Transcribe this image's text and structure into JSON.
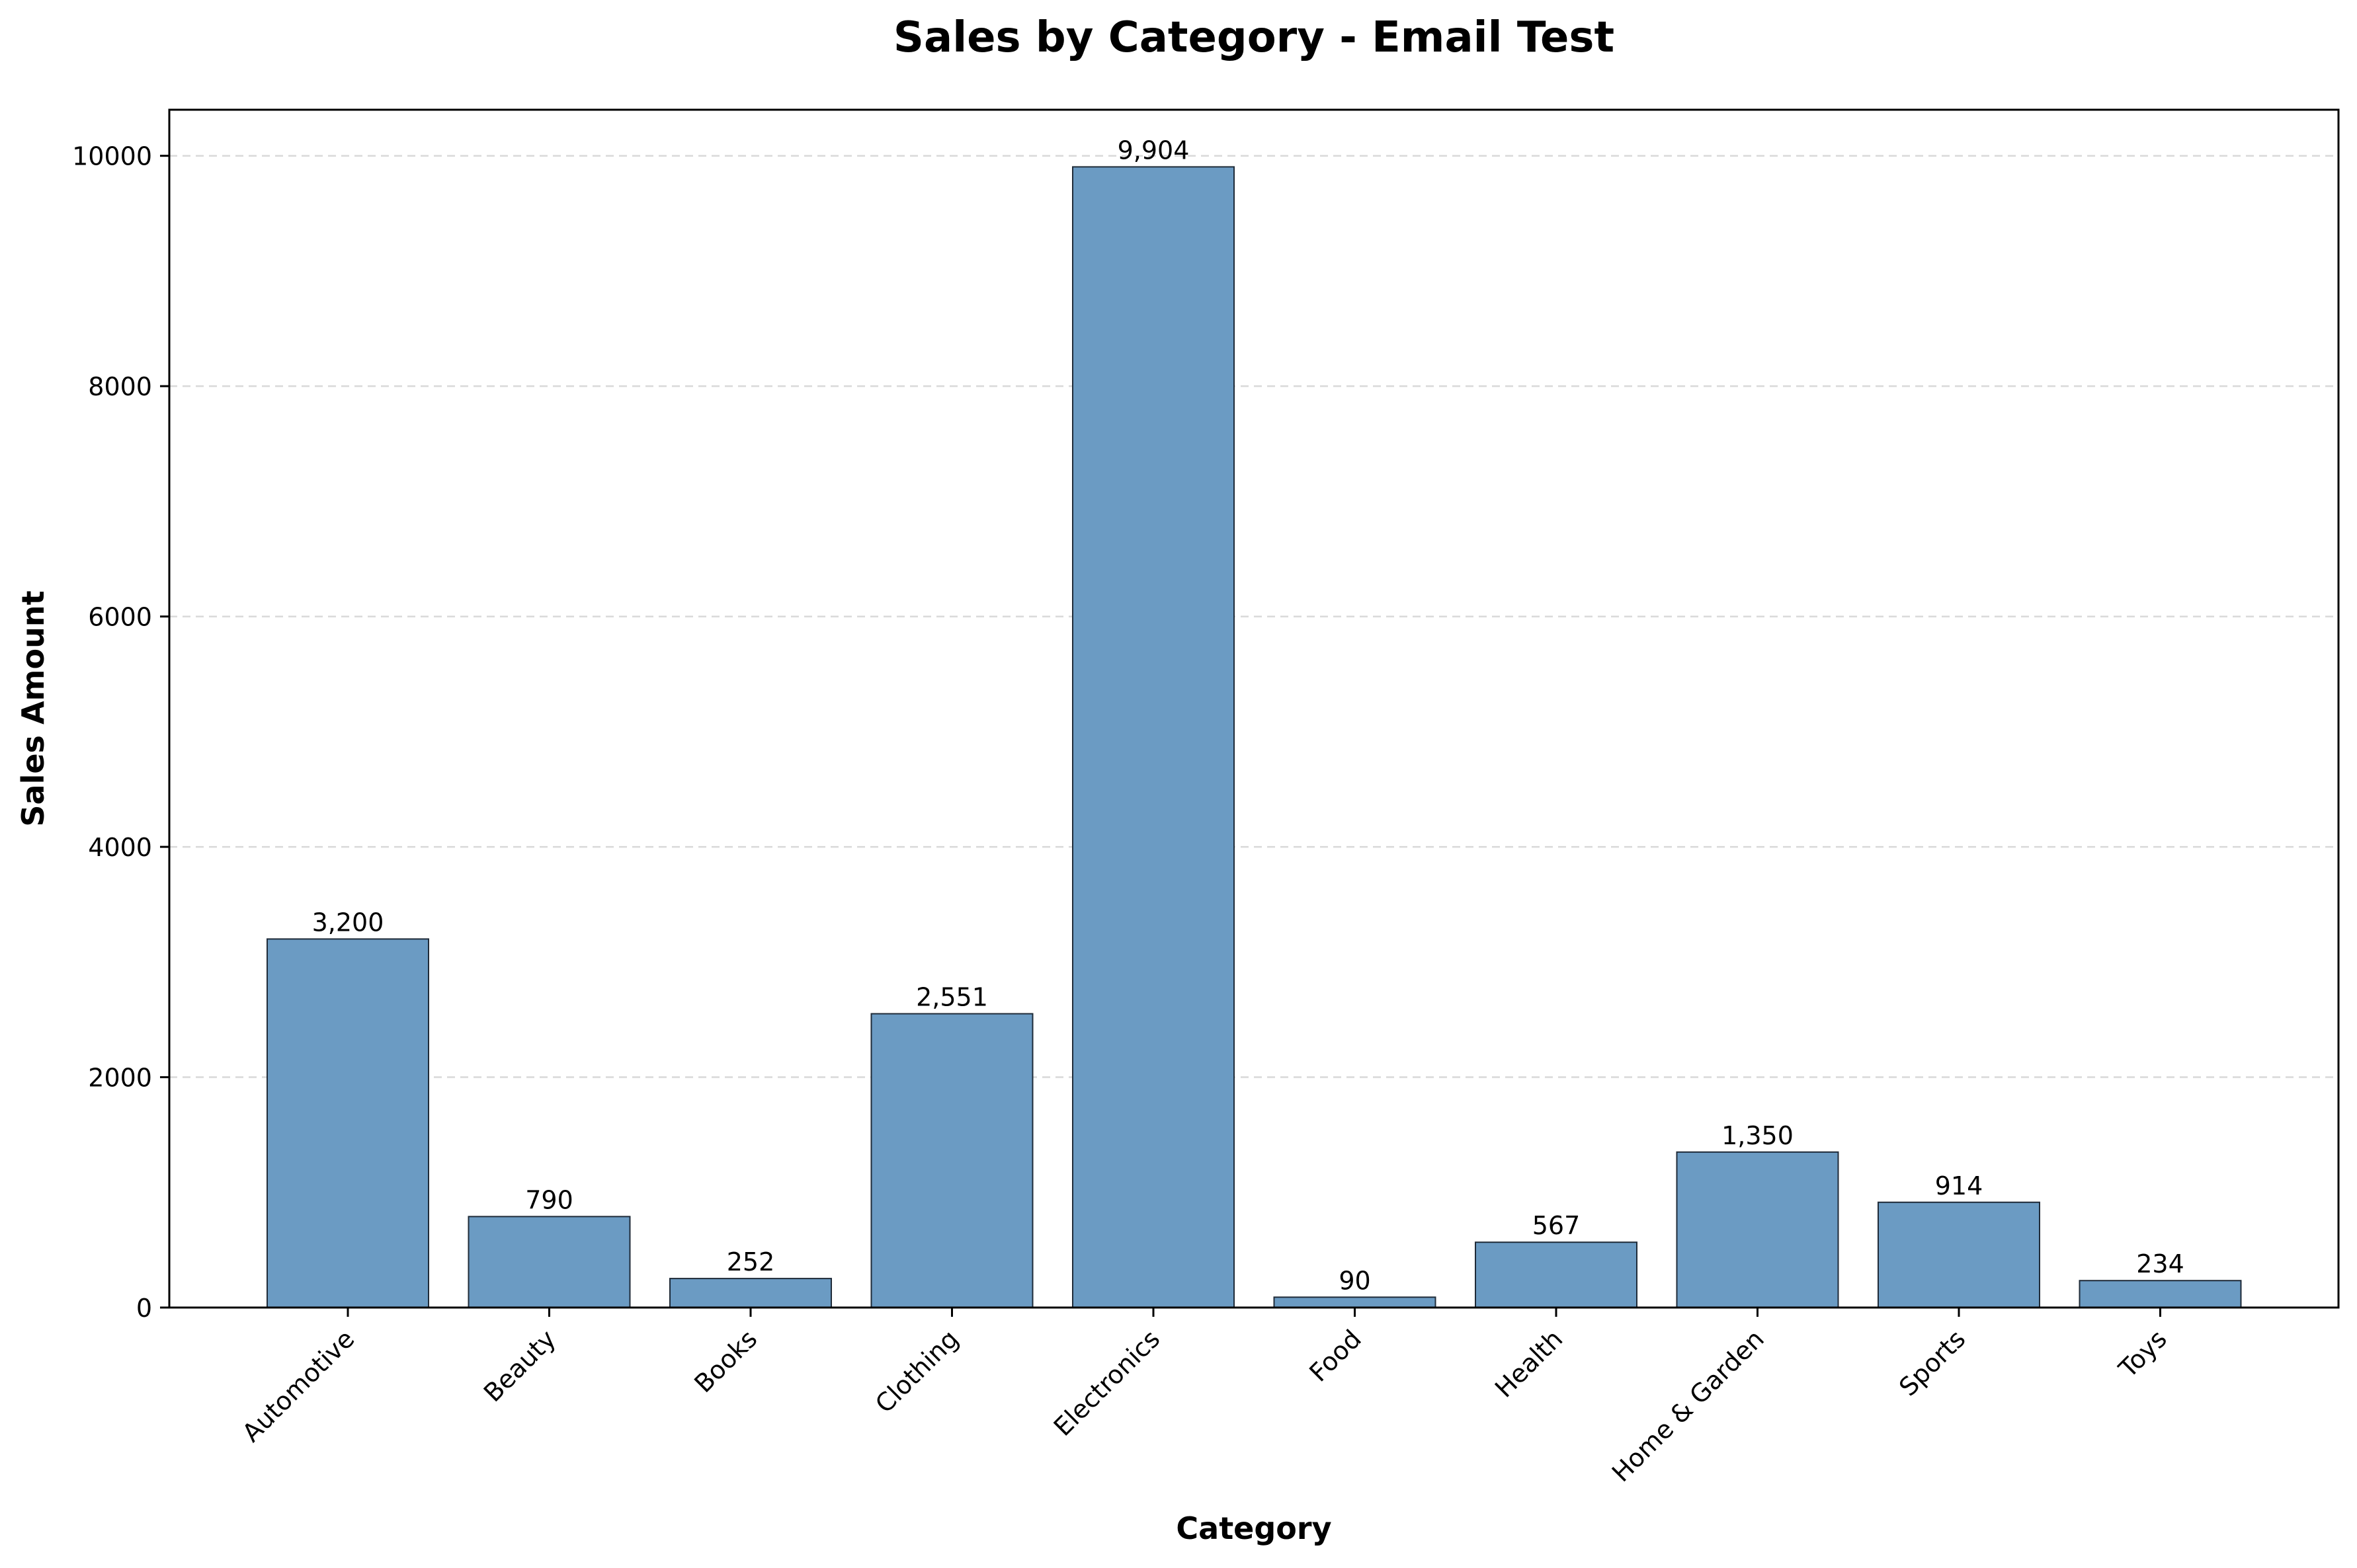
{
  "chart_data": {
    "type": "bar",
    "title": "Sales by Category - Email Test",
    "xlabel": "Category",
    "ylabel": "Sales Amount",
    "categories": [
      "Automotive",
      "Beauty",
      "Books",
      "Clothing",
      "Electronics",
      "Food",
      "Health",
      "Home & Garden",
      "Sports",
      "Toys"
    ],
    "values": [
      3200,
      790,
      252,
      2551,
      9904,
      90,
      567,
      1350,
      914,
      234
    ],
    "value_labels": [
      "3,200",
      "790",
      "252",
      "2,551",
      "9,904",
      "90",
      "567",
      "1,350",
      "914",
      "234"
    ],
    "yticks": [
      0,
      2000,
      4000,
      6000,
      8000,
      10000
    ],
    "ylim": [
      0,
      10400
    ],
    "grid": true,
    "grid_axis": "y",
    "grid_style": "dashed",
    "legend": "none",
    "x_tick_rotation": 45,
    "bar_color": "#6b9bc3",
    "bar_edge_color": "#1f2b38"
  }
}
